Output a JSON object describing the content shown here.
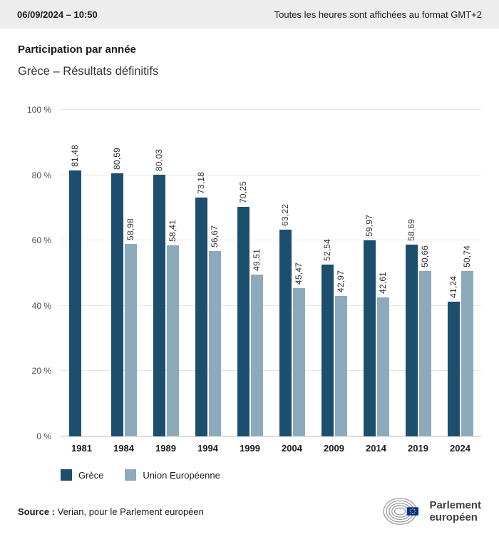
{
  "header": {
    "datetime": "06/09/2024 – 10:50",
    "timezone_note": "Toutes les heures sont affichées au format GMT+2"
  },
  "title": "Participation par année",
  "subtitle": "Grèce – Résultats définitifs",
  "chart_data": {
    "type": "bar",
    "title": "Participation par année",
    "subtitle": "Grèce – Résultats définitifs",
    "categories": [
      "1981",
      "1984",
      "1989",
      "1994",
      "1999",
      "2004",
      "2009",
      "2014",
      "2019",
      "2024"
    ],
    "series": [
      {
        "name": "Grèce",
        "color": "#1c4f6e",
        "values": [
          81.48,
          80.59,
          80.03,
          73.18,
          70.25,
          63.22,
          52.54,
          59.97,
          58.69,
          41.24
        ],
        "labels": [
          "81,48",
          "80,59",
          "80,03",
          "73,18",
          "70,25",
          "63,22",
          "52,54",
          "59,97",
          "58,69",
          "41,24"
        ]
      },
      {
        "name": "Union Européenne",
        "color": "#8da9bc",
        "values": [
          null,
          58.98,
          58.41,
          56.67,
          49.51,
          45.47,
          42.97,
          42.61,
          50.66,
          50.74
        ],
        "labels": [
          null,
          "58,98",
          "58,41",
          "56,67",
          "49,51",
          "45,47",
          "42,97",
          "42,61",
          "50,66",
          "50,74"
        ]
      }
    ],
    "ylim": [
      0,
      100
    ],
    "yticks": [
      {
        "value": 0,
        "label": "0 %"
      },
      {
        "value": 20,
        "label": "20 %"
      },
      {
        "value": 40,
        "label": "40 %"
      },
      {
        "value": 60,
        "label": "60 %"
      },
      {
        "value": 80,
        "label": "80 %"
      },
      {
        "value": 100,
        "label": "100 %"
      }
    ],
    "grid": true,
    "legend_position": "bottom"
  },
  "source": {
    "label": "Source :",
    "text": " Verian, pour le Parlement européen"
  },
  "logo": {
    "line1": "Parlement",
    "line2": "européen"
  }
}
